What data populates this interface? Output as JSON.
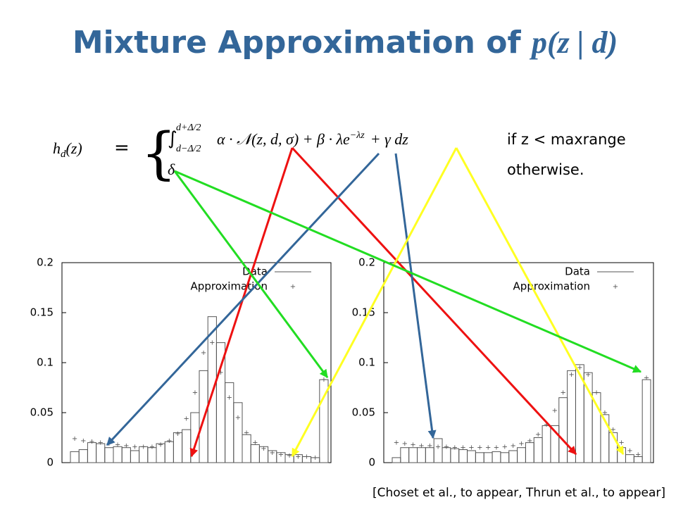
{
  "title": {
    "main": "Mixture Approximation of ",
    "expr": "p(z | d)"
  },
  "formula": {
    "lhs": "h",
    "lhs_sub": "d",
    "lhs_arg": "(z)",
    "equals": "=",
    "upper": "d+Δ/2",
    "lower": "d−Δ/2",
    "expr": "α · 𝒩(z, d, σ) + β · λe",
    "sup": "−λz",
    "tail": "+ γ   dz",
    "cond1": "if z < maxrange",
    "case2": "δ",
    "cond2": "otherwise."
  },
  "citation": "[Choset et al., to appear, Thrun et al., to appear]",
  "chart_data": [
    {
      "type": "histogram",
      "ylim": [
        0,
        0.2
      ],
      "yticks": [
        0,
        0.05,
        0.1,
        0.15,
        0.2
      ],
      "series": [
        {
          "name": "Data",
          "color": "#555555",
          "values": [
            0.011,
            0.013,
            0.02,
            0.019,
            0.015,
            0.016,
            0.015,
            0.012,
            0.016,
            0.015,
            0.019,
            0.021,
            0.03,
            0.033,
            0.05,
            0.092,
            0.146,
            0.12,
            0.08,
            0.06,
            0.028,
            0.018,
            0.016,
            0.012,
            0.01,
            0.008,
            0.008,
            0.006,
            0.005,
            0.083
          ]
        },
        {
          "name": "Approximation",
          "color": "#555555",
          "values": [
            0.024,
            0.022,
            0.021,
            0.02,
            0.019,
            0.018,
            0.017,
            0.016,
            0.016,
            0.016,
            0.018,
            0.022,
            0.029,
            0.044,
            0.07,
            0.11,
            0.12,
            0.09,
            0.065,
            0.045,
            0.03,
            0.02,
            0.014,
            0.01,
            0.008,
            0.007,
            0.006,
            0.006,
            0.005,
            0.083
          ]
        }
      ]
    },
    {
      "type": "histogram",
      "ylim": [
        0,
        0.2
      ],
      "yticks": [
        0,
        0.05,
        0.1,
        0.15,
        0.2
      ],
      "series": [
        {
          "name": "Data",
          "color": "#555555",
          "values": [
            0.005,
            0.015,
            0.015,
            0.015,
            0.015,
            0.024,
            0.015,
            0.014,
            0.013,
            0.012,
            0.01,
            0.01,
            0.011,
            0.01,
            0.012,
            0.015,
            0.02,
            0.025,
            0.037,
            0.037,
            0.065,
            0.092,
            0.098,
            0.09,
            0.07,
            0.048,
            0.03,
            0.015,
            0.008,
            0.006,
            0.083
          ]
        },
        {
          "name": "Approximation",
          "color": "#555555",
          "values": [
            0.02,
            0.019,
            0.018,
            0.017,
            0.017,
            0.016,
            0.016,
            0.015,
            0.015,
            0.015,
            0.015,
            0.015,
            0.015,
            0.016,
            0.017,
            0.019,
            0.022,
            0.028,
            0.038,
            0.052,
            0.07,
            0.088,
            0.095,
            0.088,
            0.07,
            0.05,
            0.033,
            0.02,
            0.012,
            0.008,
            0.085
          ]
        }
      ]
    }
  ]
}
